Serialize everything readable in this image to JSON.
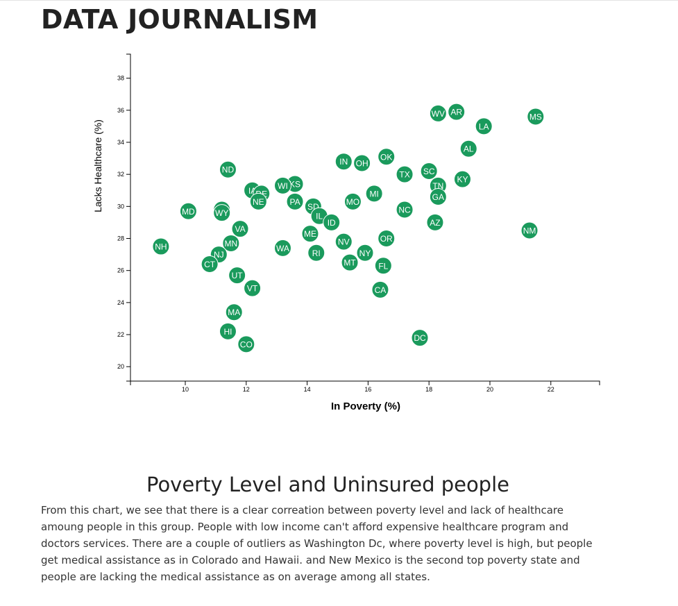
{
  "page": {
    "title": "DATA JOURNALISM",
    "heading": "Poverty Level and Uninsured people",
    "description": "From this chart, we see that there is a clear correation between poverty level and lack of healthcare amoung people in this group. People with low income can't afford expensive healthcare program and doctors services. There are a couple of outliers as Washington Dc, where poverty level is high, but people get medical assistance as in Colorado and Hawaii. and New Mexico is the second top poverty state and people are lacking the medical assistance as on average among all states."
  },
  "colors": {
    "marker": "#1a9a5c",
    "marker_text": "#ffffff"
  },
  "chart_data": {
    "type": "scatter",
    "title": "",
    "xlabel": "In Poverty (%)",
    "ylabel": "Lacks Healthcare (%)",
    "xlim": [
      8.2,
      23.6
    ],
    "ylim": [
      19.1,
      39.5
    ],
    "x_ticks": [
      10,
      12,
      14,
      16,
      18,
      20,
      22
    ],
    "y_ticks": [
      20,
      22,
      24,
      26,
      28,
      30,
      32,
      34,
      36,
      38
    ],
    "grid": false,
    "points": [
      {
        "label": "WV",
        "x": 18.3,
        "y": 35.8
      },
      {
        "label": "AR",
        "x": 18.9,
        "y": 35.9
      },
      {
        "label": "MS",
        "x": 21.5,
        "y": 35.6
      },
      {
        "label": "LA",
        "x": 19.8,
        "y": 35.0
      },
      {
        "label": "AL",
        "x": 19.3,
        "y": 33.6
      },
      {
        "label": "OK",
        "x": 16.6,
        "y": 33.1
      },
      {
        "label": "IN",
        "x": 15.2,
        "y": 32.8
      },
      {
        "label": "OH",
        "x": 15.8,
        "y": 32.7
      },
      {
        "label": "ND",
        "x": 11.4,
        "y": 32.3
      },
      {
        "label": "SC",
        "x": 18.0,
        "y": 32.2
      },
      {
        "label": "TX",
        "x": 17.2,
        "y": 32.0
      },
      {
        "label": "KY",
        "x": 19.1,
        "y": 31.7
      },
      {
        "label": "KS",
        "x": 13.6,
        "y": 31.4
      },
      {
        "label": "WI",
        "x": 13.2,
        "y": 31.3
      },
      {
        "label": "TN",
        "x": 18.3,
        "y": 31.3
      },
      {
        "label": "IA",
        "x": 12.2,
        "y": 31.0
      },
      {
        "label": "DE",
        "x": 12.5,
        "y": 30.8
      },
      {
        "label": "MI",
        "x": 16.2,
        "y": 30.8
      },
      {
        "label": "GA",
        "x": 18.3,
        "y": 30.6
      },
      {
        "label": "NE",
        "x": 12.4,
        "y": 30.3
      },
      {
        "label": "PA",
        "x": 13.6,
        "y": 30.3
      },
      {
        "label": "MO",
        "x": 15.5,
        "y": 30.3
      },
      {
        "label": "SD",
        "x": 14.2,
        "y": 30.0
      },
      {
        "label": "MD",
        "x": 10.1,
        "y": 29.7
      },
      {
        "label": "AK",
        "x": 11.2,
        "y": 29.8
      },
      {
        "label": "WY",
        "x": 11.2,
        "y": 29.6
      },
      {
        "label": "NC",
        "x": 17.2,
        "y": 29.8
      },
      {
        "label": "IL",
        "x": 14.4,
        "y": 29.4
      },
      {
        "label": "ID",
        "x": 14.8,
        "y": 29.0
      },
      {
        "label": "AZ",
        "x": 18.2,
        "y": 29.0
      },
      {
        "label": "VA",
        "x": 11.8,
        "y": 28.6
      },
      {
        "label": "NM",
        "x": 21.3,
        "y": 28.5
      },
      {
        "label": "ME",
        "x": 14.1,
        "y": 28.3
      },
      {
        "label": "OR",
        "x": 16.6,
        "y": 28.0
      },
      {
        "label": "NV",
        "x": 15.2,
        "y": 27.8
      },
      {
        "label": "MN",
        "x": 11.5,
        "y": 27.7
      },
      {
        "label": "NH",
        "x": 9.2,
        "y": 27.5
      },
      {
        "label": "WA",
        "x": 13.2,
        "y": 27.4
      },
      {
        "label": "RI",
        "x": 14.3,
        "y": 27.1
      },
      {
        "label": "NY",
        "x": 15.9,
        "y": 27.1
      },
      {
        "label": "NJ",
        "x": 11.1,
        "y": 27.0
      },
      {
        "label": "MT",
        "x": 15.4,
        "y": 26.5
      },
      {
        "label": "CT",
        "x": 10.8,
        "y": 26.4
      },
      {
        "label": "FL",
        "x": 16.5,
        "y": 26.3
      },
      {
        "label": "UT",
        "x": 11.7,
        "y": 25.7
      },
      {
        "label": "VT",
        "x": 12.2,
        "y": 24.9
      },
      {
        "label": "CA",
        "x": 16.4,
        "y": 24.8
      },
      {
        "label": "MA",
        "x": 11.6,
        "y": 23.4
      },
      {
        "label": "HI",
        "x": 11.4,
        "y": 22.2
      },
      {
        "label": "DC",
        "x": 17.7,
        "y": 21.8
      },
      {
        "label": "CO",
        "x": 12.0,
        "y": 21.4
      }
    ]
  }
}
